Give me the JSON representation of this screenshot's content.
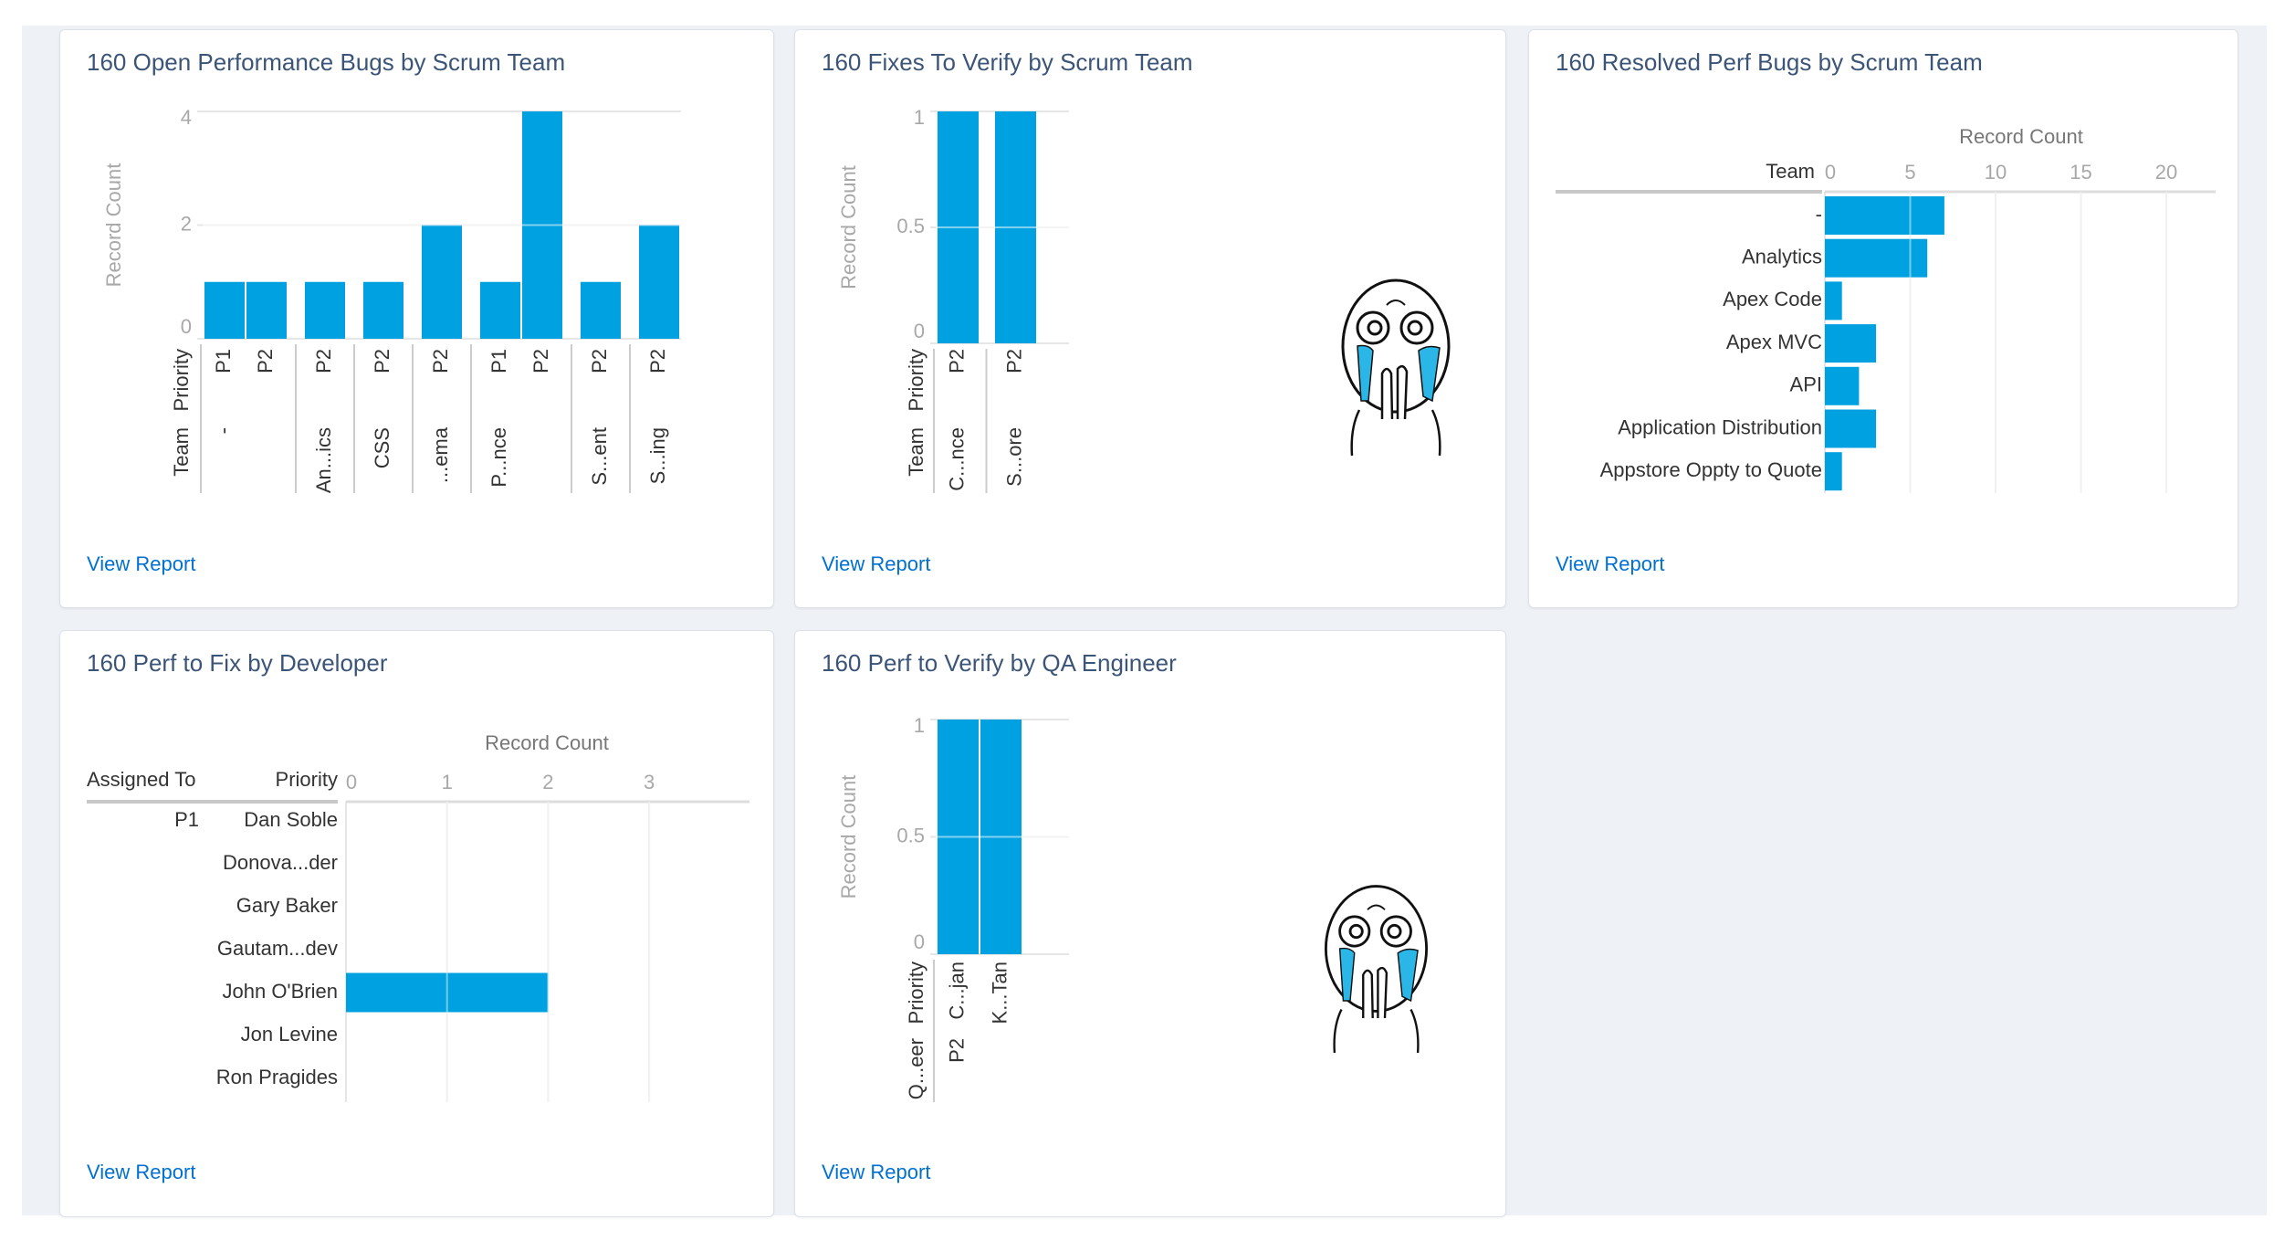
{
  "colors": {
    "bar": "#00a1e0",
    "title": "#3b5578",
    "link": "#0070d2",
    "background": "#eef1f6"
  },
  "cards": [
    {
      "title": "160 Open Performance Bugs by Scrum Team",
      "link": "View Report"
    },
    {
      "title": "160 Fixes To Verify by Scrum Team",
      "link": "View Report",
      "image": "crying-face-icon"
    },
    {
      "title": "160 Resolved Perf Bugs by Scrum Team",
      "link": "View Report"
    },
    {
      "title": "160 Perf to Fix by Developer",
      "link": "View Report"
    },
    {
      "title": "160 Perf to Verify by QA Engineer",
      "link": "View Report",
      "image": "crying-face-icon"
    }
  ],
  "chart_data": [
    {
      "type": "bar",
      "title": "160 Open Performance Bugs by Scrum Team",
      "ylabel": "Record Count",
      "ylim": [
        0,
        4
      ],
      "yticks": [
        "0",
        "2",
        "4"
      ],
      "axis_labels": [
        "Priority",
        "Team"
      ],
      "groups": [
        {
          "label": "-",
          "bars": [
            {
              "label": "P1",
              "value": 1
            },
            {
              "label": "P2",
              "value": 1
            }
          ]
        },
        {
          "label": "An...ics",
          "bars": [
            {
              "label": "P2",
              "value": 1
            }
          ]
        },
        {
          "label": "CSS",
          "bars": [
            {
              "label": "P2",
              "value": 1
            }
          ]
        },
        {
          "label": "...ema",
          "bars": [
            {
              "label": "P2",
              "value": 2
            }
          ]
        },
        {
          "label": "P...nce",
          "bars": [
            {
              "label": "P1",
              "value": 1
            },
            {
              "label": "P2",
              "value": 4
            }
          ]
        },
        {
          "label": "S...ent",
          "bars": [
            {
              "label": "P2",
              "value": 1
            }
          ]
        },
        {
          "label": "S...ing",
          "bars": [
            {
              "label": "P2",
              "value": 2
            }
          ]
        }
      ]
    },
    {
      "type": "bar",
      "title": "160 Fixes To Verify by Scrum Team",
      "ylabel": "Record Count",
      "ylim": [
        0,
        1
      ],
      "yticks": [
        "0",
        "0.5",
        "1"
      ],
      "axis_labels": [
        "Priority",
        "Team"
      ],
      "groups": [
        {
          "label": "C...nce",
          "bars": [
            {
              "label": "P2",
              "value": 1
            }
          ]
        },
        {
          "label": "S...ore",
          "bars": [
            {
              "label": "P2",
              "value": 1
            }
          ]
        }
      ]
    },
    {
      "type": "bar",
      "orientation": "horizontal",
      "title": "160 Resolved Perf Bugs by Scrum Team",
      "xlabel": "Record Count",
      "category_header": "Team",
      "xlim": [
        0,
        23
      ],
      "xticks": [
        "0",
        "5",
        "10",
        "15",
        "20"
      ],
      "categories": [
        "-",
        "Analytics",
        "Apex Code",
        "Apex MVC",
        "API",
        "Application Distribution",
        "Appstore Oppty to Quote"
      ],
      "values": [
        7,
        6,
        1,
        3,
        2,
        3,
        1
      ]
    },
    {
      "type": "bar",
      "orientation": "horizontal",
      "title": "160 Perf to Fix by Developer",
      "xlabel": "Record Count",
      "headers": [
        "Assigned To",
        "Priority"
      ],
      "xlim": [
        0,
        3.6
      ],
      "xticks": [
        "0",
        "1",
        "2",
        "3"
      ],
      "group": "P1",
      "categories": [
        "Dan Soble",
        "Donova...der",
        "Gary Baker",
        "Gautam...dev",
        "John O'Brien",
        "Jon Levine",
        "Ron Pragides"
      ],
      "values": [
        0,
        0,
        0,
        0,
        2,
        0,
        0
      ]
    },
    {
      "type": "bar",
      "title": "160 Perf to Verify by QA Engineer",
      "ylabel": "Record Count",
      "ylim": [
        0,
        1
      ],
      "yticks": [
        "0",
        "0.5",
        "1"
      ],
      "axis_labels": [
        "Priority",
        "Q...eer"
      ],
      "groups": [
        {
          "label": "P2",
          "bars": [
            {
              "label": "C...jan",
              "value": 1
            },
            {
              "label": "K...Tan",
              "value": 1
            }
          ]
        }
      ]
    }
  ]
}
